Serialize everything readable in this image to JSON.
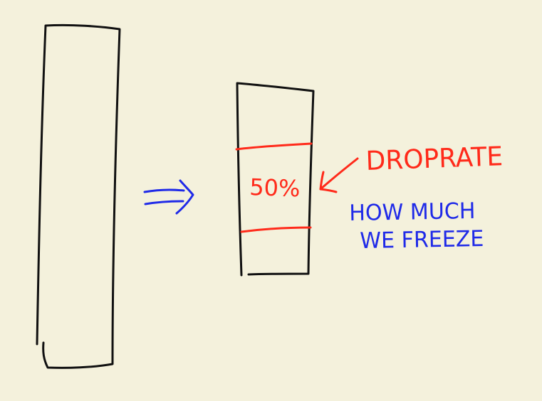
{
  "diagram": {
    "percent_label": "50%",
    "annotation_primary": "DROPRATE",
    "annotation_secondary_line1": "HOW MUCH",
    "annotation_secondary_line2": "WE FREEZE",
    "colors": {
      "background": "#f4f1dc",
      "ink_black": "#111111",
      "ink_red": "#ff2a1a",
      "ink_blue": "#1f2ae8"
    }
  }
}
